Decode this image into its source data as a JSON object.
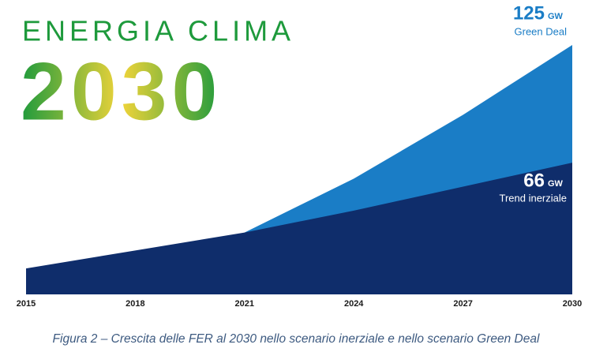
{
  "chart_data": {
    "type": "area",
    "logo": {
      "title": "ENERGIA CLIMA",
      "year": "2030"
    },
    "caption": "Figura 2 – Crescita delle FER al 2030 nello scenario inerziale e nello scenario Green Deal",
    "unit": "GW",
    "x": [
      2015,
      2018,
      2021,
      2024,
      2027,
      2030
    ],
    "xlim": [
      2015,
      2030
    ],
    "xticks": [
      2015,
      2018,
      2021,
      2024,
      2027,
      2030
    ],
    "series": [
      {
        "name": "Green Deal",
        "color": "#1a7dc6",
        "values": [
          null,
          null,
          31,
          58,
          90,
          125
        ]
      },
      {
        "name": "Trend inerziale",
        "color": "#0f2d6b",
        "values": [
          13,
          22,
          31,
          42,
          54,
          66
        ]
      }
    ]
  }
}
